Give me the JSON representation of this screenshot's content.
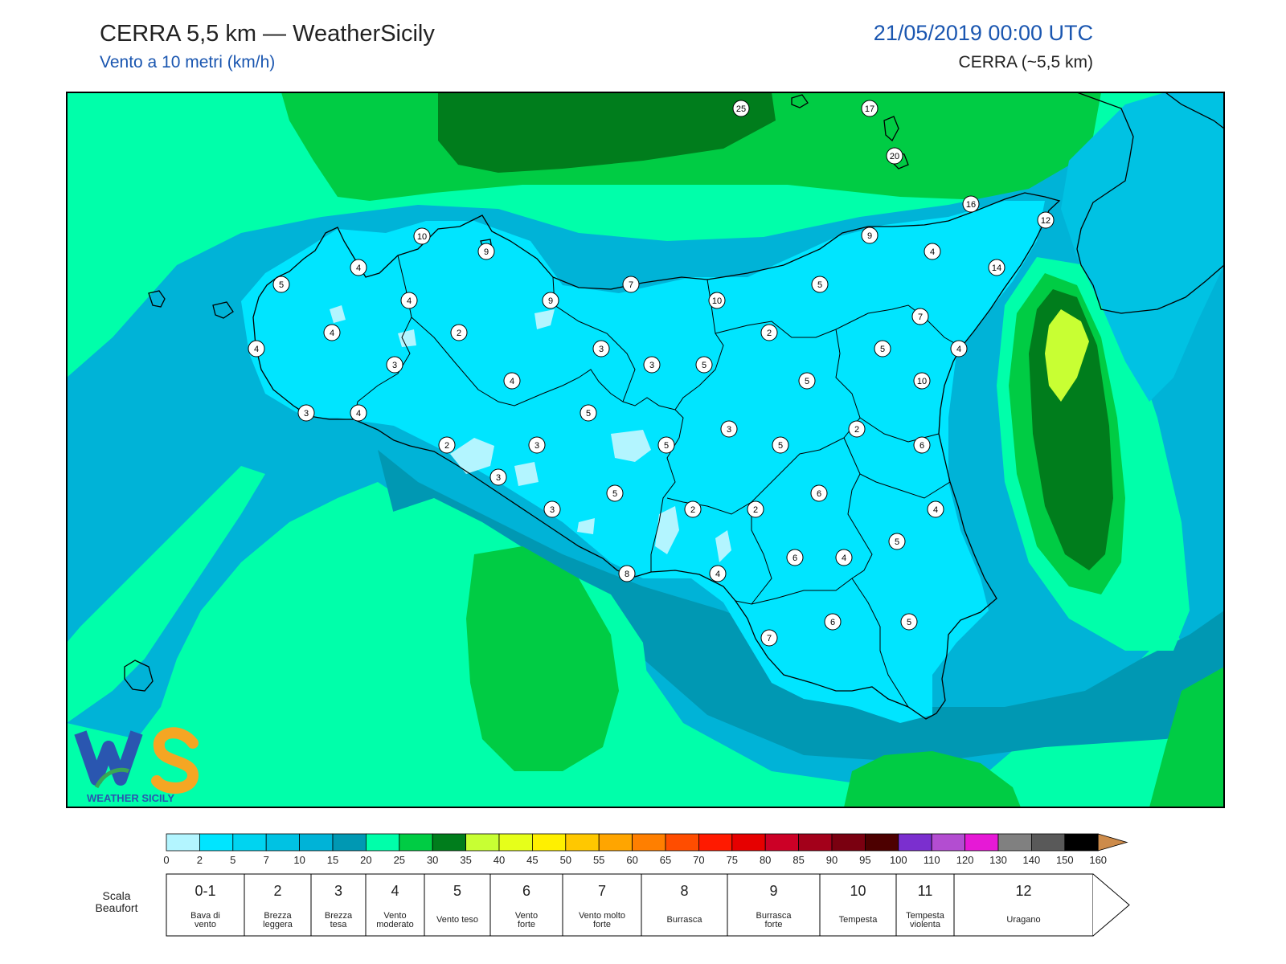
{
  "header": {
    "title": "CERRA 5,5 km — WeatherSicily",
    "subtitle": "Vento a 10 metri (km/h)",
    "datetime": "21/05/2019 00:00 UTC",
    "model": "CERRA (~5,5 km)"
  },
  "logo": {
    "text": "WEATHER SICILY",
    "initials": "WS"
  },
  "map": {
    "labels": [
      "25",
      "17",
      "20",
      "16",
      "12",
      "10",
      "9",
      "9",
      "4",
      "14",
      "5",
      "4",
      "5",
      "7",
      "10",
      "7",
      "4",
      "9",
      "2",
      "2",
      "4",
      "4",
      "3",
      "3",
      "5",
      "3",
      "4",
      "5",
      "4",
      "5",
      "10",
      "3",
      "4",
      "5",
      "2",
      "2",
      "3",
      "3",
      "5",
      "6",
      "5",
      "3",
      "2",
      "2",
      "5",
      "6",
      "4",
      "3",
      "5",
      "8",
      "4",
      "6",
      "4",
      "6",
      "5",
      "7"
    ],
    "colors": {
      "land_light": "#00e5ff",
      "sea_mid": "#00b3d7",
      "sea_dark": "#0098b3",
      "aqua": "#00ffaa",
      "green": "#00cc44",
      "darkgreen": "#007d1c",
      "lime": "#c8ff33",
      "palecyan": "#b3f5ff",
      "border": "#000000"
    }
  },
  "colorbar": {
    "ticks": [
      "0",
      "2",
      "5",
      "7",
      "10",
      "15",
      "20",
      "25",
      "30",
      "35",
      "40",
      "45",
      "50",
      "55",
      "60",
      "65",
      "70",
      "75",
      "80",
      "85",
      "90",
      "95",
      "100",
      "110",
      "120",
      "130",
      "140",
      "150",
      "160"
    ],
    "colors": [
      "#b3f5ff",
      "#00e5ff",
      "#00d4f0",
      "#00c2e3",
      "#00b3d7",
      "#0098b3",
      "#00ffaa",
      "#00cc44",
      "#007d1c",
      "#c8ff33",
      "#e6ff1a",
      "#fff000",
      "#ffc800",
      "#ffa500",
      "#ff7f00",
      "#ff4d00",
      "#ff1a00",
      "#e60000",
      "#cc0026",
      "#a3001a",
      "#7a0010",
      "#4d0000",
      "#7b2fcf",
      "#b34dd1",
      "#e619d6",
      "#808080",
      "#595959",
      "#000000",
      "#8b4a2b",
      "#cd8b4a"
    ]
  },
  "beaufort": {
    "title": "Scala Beaufort",
    "items": [
      {
        "num": "0-1",
        "desc": "Bava di vento"
      },
      {
        "num": "2",
        "desc": "Brezza leggera"
      },
      {
        "num": "3",
        "desc": "Brezza tesa"
      },
      {
        "num": "4",
        "desc": "Vento moderato"
      },
      {
        "num": "5",
        "desc": "Vento teso"
      },
      {
        "num": "6",
        "desc": "Vento forte"
      },
      {
        "num": "7",
        "desc": "Vento molto forte"
      },
      {
        "num": "8",
        "desc": "Burrasca"
      },
      {
        "num": "9",
        "desc": "Burrasca forte"
      },
      {
        "num": "10",
        "desc": "Tempesta"
      },
      {
        "num": "11",
        "desc": "Tempesta violenta"
      },
      {
        "num": "12",
        "desc": "Uragano"
      }
    ]
  }
}
